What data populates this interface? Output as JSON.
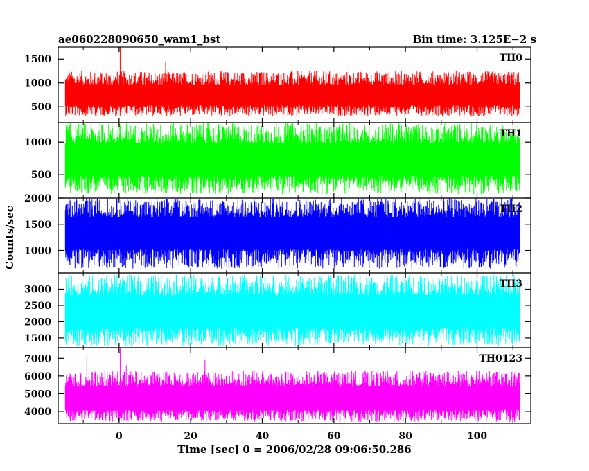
{
  "chart_data": {
    "type": "line",
    "title_left": "ae060228090650_wam1_bst",
    "title_right": "Bin time: 3.125E−2 s",
    "xlabel": "Time [sec] 0 = 2006/02/28 09:06:50.286",
    "ylabel": "Counts/sec",
    "xlim": [
      -17,
      115
    ],
    "data_x_range": [
      -15,
      112
    ],
    "xticks": [
      0,
      20,
      40,
      60,
      80,
      100
    ],
    "xtick_labels": [
      "0",
      "20",
      "40",
      "60",
      "80",
      "100"
    ],
    "panels": [
      {
        "name": "TH0",
        "color": "#ff0000",
        "ylim": [
          170,
          1750
        ],
        "yticks": [
          500,
          1000,
          1500
        ],
        "ytick_labels": [
          "500",
          "1000",
          "1500"
        ],
        "envelope": {
          "low": 300,
          "high": 1250,
          "mean": 720
        },
        "spikes": [
          {
            "x": 0.3,
            "y": 1750
          },
          {
            "x": 13,
            "y": 1450
          }
        ]
      },
      {
        "name": "TH1",
        "color": "#00ff00",
        "ylim": [
          140,
          1300
        ],
        "yticks": [
          500,
          1000
        ],
        "ytick_labels": [
          "500",
          "1000"
        ],
        "envelope": {
          "low": 200,
          "high": 1300,
          "mean": 720
        },
        "spikes": []
      },
      {
        "name": "TH2",
        "color": "#0000ff",
        "ylim": [
          570,
          2000
        ],
        "yticks": [
          1000,
          1500,
          2000
        ],
        "ytick_labels": [
          "1000",
          "1500",
          "2000"
        ],
        "envelope": {
          "low": 650,
          "high": 2000,
          "mean": 1330
        },
        "spikes": []
      },
      {
        "name": "TH3",
        "color": "#00ffff",
        "ylim": [
          1200,
          3500
        ],
        "yticks": [
          1500,
          2000,
          2500,
          3000
        ],
        "ytick_labels": [
          "1500",
          "2000",
          "2500",
          "3000"
        ],
        "envelope": {
          "low": 1250,
          "high": 3450,
          "mean": 2280
        },
        "spikes": []
      },
      {
        "name": "TH0123",
        "color": "#ff00ff",
        "ylim": [
          3330,
          7600
        ],
        "yticks": [
          4000,
          5000,
          6000,
          7000
        ],
        "ytick_labels": [
          "4000",
          "5000",
          "6000",
          "7000"
        ],
        "envelope": {
          "low": 3400,
          "high": 6300,
          "mean": 4650
        },
        "spikes": [
          {
            "x": 0.3,
            "y": 7600
          },
          {
            "x": 2,
            "y": 6600
          },
          {
            "x": -9,
            "y": 7100
          },
          {
            "x": 24,
            "y": 6900
          }
        ]
      }
    ]
  }
}
